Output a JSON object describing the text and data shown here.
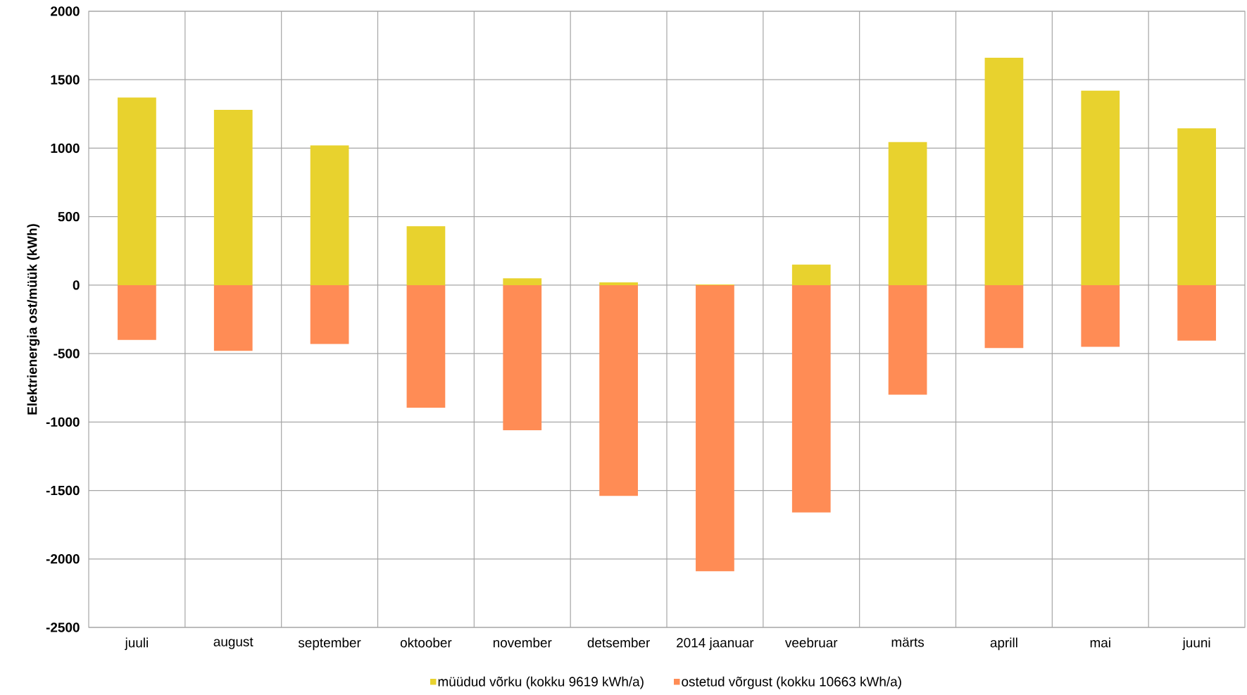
{
  "chart_data": {
    "type": "bar",
    "ylabel": "Elektrienergia ost/müük (kWh)",
    "categories": [
      "juuli",
      "august",
      "september",
      "oktoober",
      "november",
      "detsember",
      "2014 jaanuar",
      "veebruar",
      "märts",
      "aprill",
      "mai",
      "juuni"
    ],
    "series": [
      {
        "name": "müüdud võrku (kokku 9619 kWh/a)",
        "color": "#e8d22e",
        "values": [
          1370,
          1280,
          1020,
          430,
          50,
          20,
          5,
          150,
          1045,
          1660,
          1420,
          1145
        ]
      },
      {
        "name": "ostetud võrgust (kokku 10663 kWh/a)",
        "color": "#ff8c55",
        "values": [
          -400,
          -480,
          -430,
          -895,
          -1060,
          -1540,
          -2090,
          -1660,
          -800,
          -460,
          -450,
          -405
        ]
      }
    ],
    "stacked": true,
    "ylim": [
      -2500,
      2000
    ],
    "yticks": [
      -2500,
      -2000,
      -1500,
      -1000,
      -500,
      0,
      500,
      1000,
      1500,
      2000
    ],
    "grid": true,
    "legend": "bottom"
  }
}
